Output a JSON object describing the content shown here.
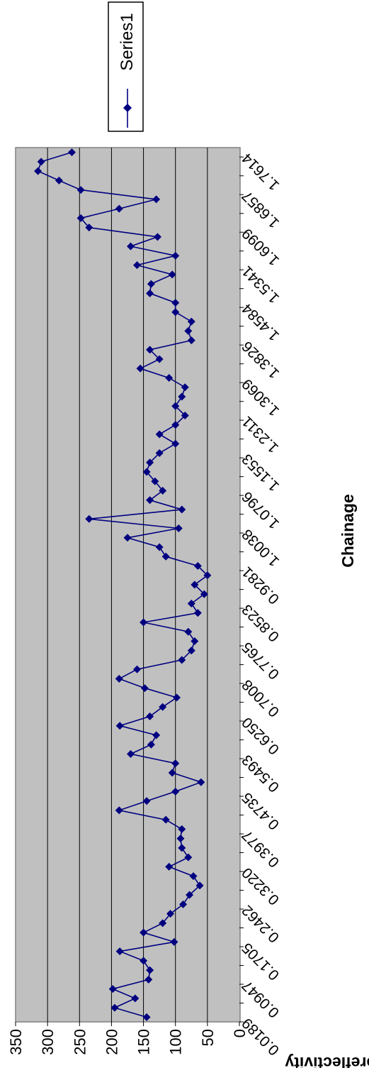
{
  "chart_data": {
    "type": "line",
    "xlabel": "Chainage",
    "ylabel": "Retroreflectivity",
    "ylim": [
      0,
      350
    ],
    "yticks": [
      0,
      50,
      100,
      150,
      200,
      250,
      300,
      350
    ],
    "x_tick_labels": [
      "0.0189",
      "0.0947",
      "0.1705",
      "0.2462",
      "0.3220",
      "0.3977",
      "0.4735",
      "0.5493",
      "0.6250",
      "0.7008",
      "0.7765",
      "0.8523",
      "0.9281",
      "1.0038",
      "1.0796",
      "1.1553",
      "1.2311",
      "1.3069",
      "1.3826",
      "1.4584",
      "1.5341",
      "1.6099",
      "1.6857",
      "1.7614"
    ],
    "grid": true,
    "legend_position": "right",
    "plot_background": "#c0c0c0",
    "series_color": "#000080",
    "series": [
      {
        "name": "Series1",
        "values": [
          145,
          195,
          163,
          198,
          142,
          140,
          150,
          187,
          102,
          150,
          120,
          108,
          88,
          78,
          62,
          72,
          110,
          80,
          90,
          92,
          90,
          115,
          188,
          145,
          100,
          60,
          105,
          100,
          170,
          138,
          130,
          187,
          140,
          120,
          98,
          148,
          188,
          160,
          90,
          75,
          70,
          80,
          150,
          65,
          75,
          55,
          70,
          50,
          65,
          115,
          125,
          175,
          95,
          235,
          90,
          140,
          120,
          132,
          145,
          140,
          125,
          100,
          125,
          100,
          85,
          100,
          90,
          85,
          110,
          155,
          125,
          140,
          75,
          80,
          75,
          100,
          100,
          140,
          138,
          105,
          160,
          100,
          170,
          128,
          235,
          248,
          188,
          130,
          248,
          282,
          315,
          310,
          262
        ]
      }
    ]
  }
}
